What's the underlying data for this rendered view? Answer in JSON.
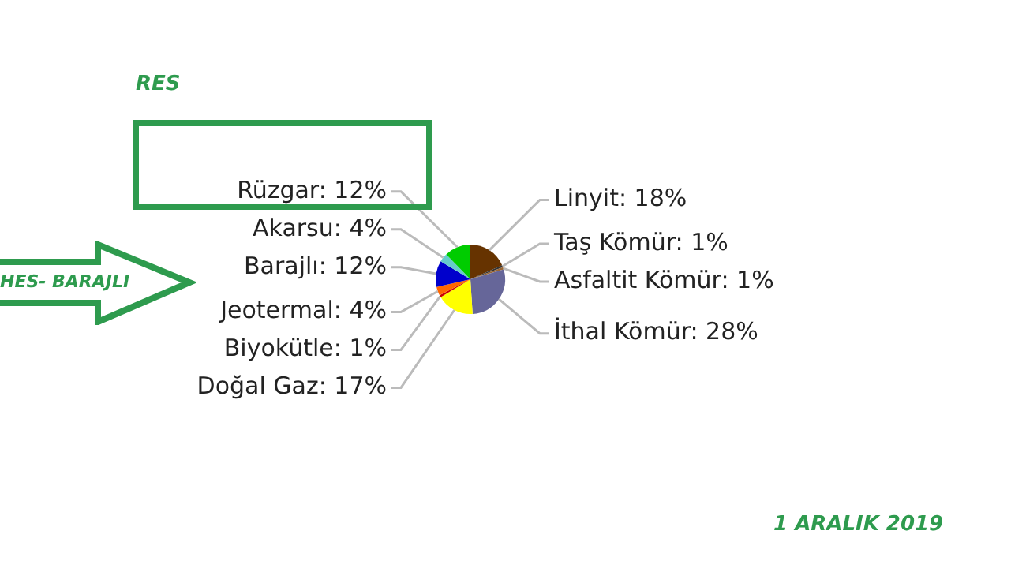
{
  "chart_data": {
    "type": "pie",
    "categories": [
      "Linyit: 18%",
      "Taş Kömür: 1%",
      "Asfaltit Kömür: 1%",
      "İthal Kömür: 28%",
      "Doğal Gaz: 17%",
      "Biyokütle: 1%",
      "Jeotermal: 4%",
      "Barajlı: 12%",
      "Akarsu: 4%",
      "Rüzgar: 12%"
    ],
    "values": [
      18,
      1,
      1,
      28,
      17,
      1,
      4,
      12,
      4,
      12
    ],
    "colors": [
      "#663300",
      "#333333",
      "#996633",
      "#666699",
      "#ffff00",
      "#cc0000",
      "#ff6600",
      "#0000cc",
      "#66cccc",
      "#00cc00"
    ],
    "legend": false,
    "annotations": [
      "RES",
      "HES- BARAJLI",
      "1 ARALIK 2019"
    ]
  }
}
